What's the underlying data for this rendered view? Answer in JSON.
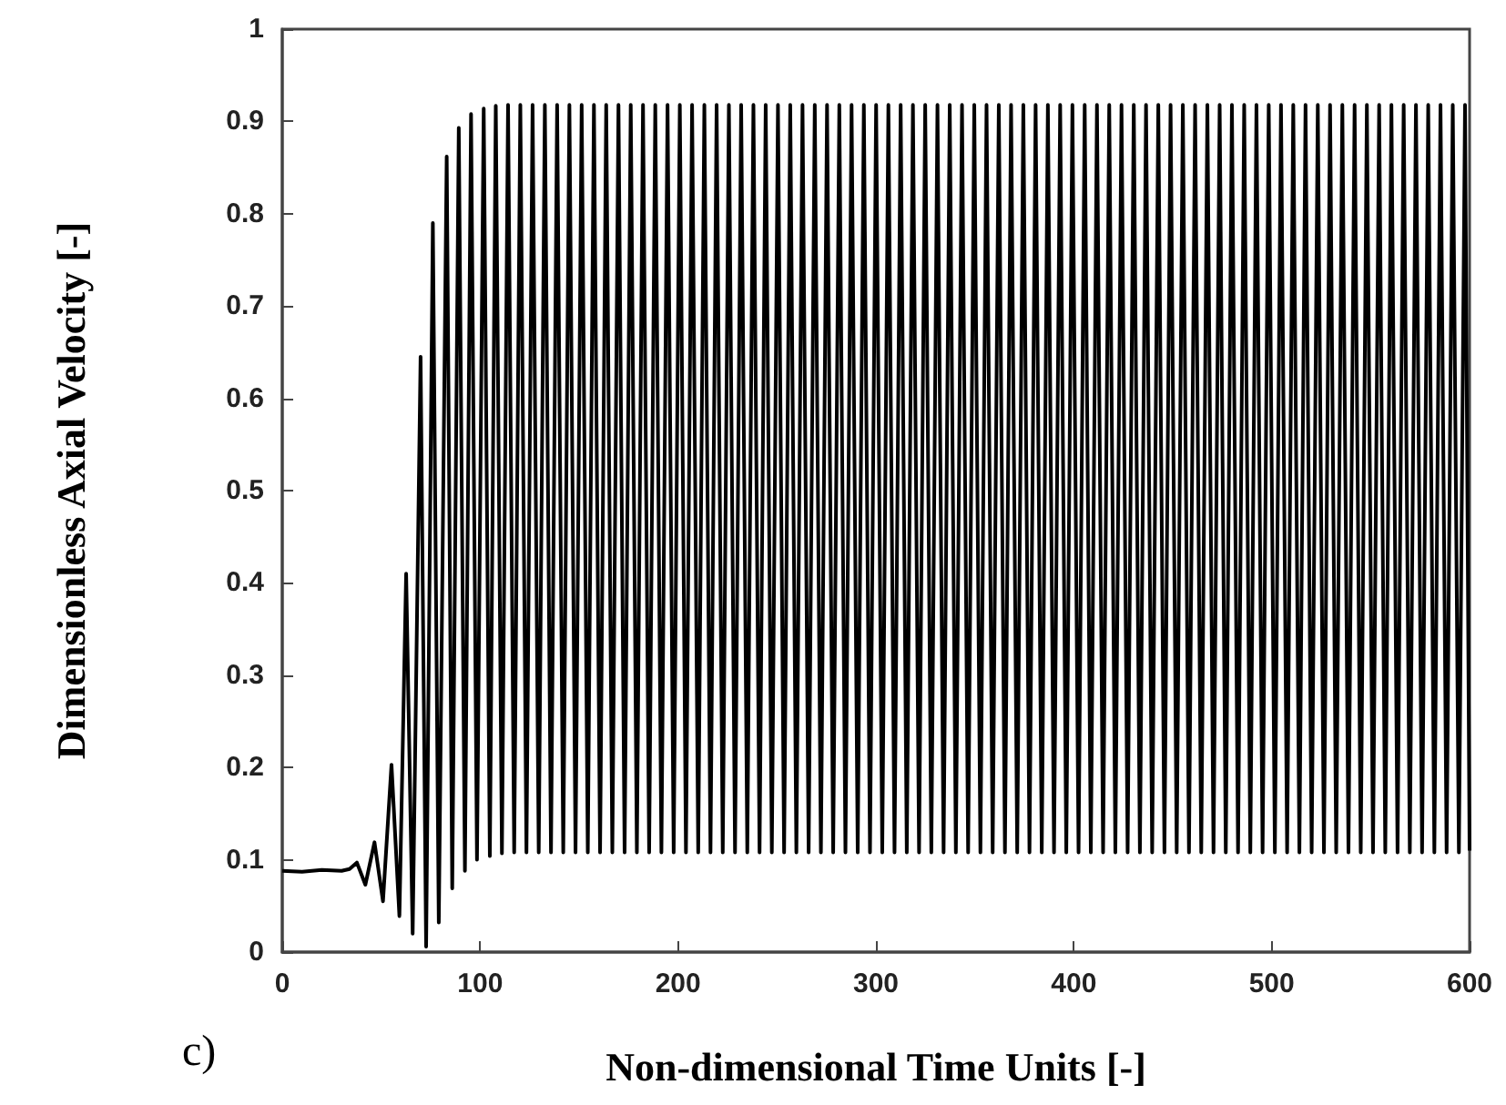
{
  "chart_data": {
    "type": "line",
    "xlabel": "Non-dimensional Time Units [-]",
    "ylabel": "Dimensionless Axial Velocity [-]",
    "annotations": [
      "c)"
    ],
    "xlim": [
      0,
      600
    ],
    "xticks": [
      0,
      100,
      200,
      300,
      400,
      500,
      600
    ],
    "ylim": [
      0,
      1
    ],
    "yticks": [
      0,
      0.1,
      0.2,
      0.3,
      0.4,
      0.5,
      0.6,
      0.7,
      0.8,
      0.9,
      1
    ],
    "grid": false,
    "marker": "none",
    "line_style": "solid",
    "series": [
      {
        "color": "#000000",
        "x": [
          0,
          10,
          20,
          30,
          34,
          37.7,
          42,
          46.6,
          50.9,
          55.2,
          59.2,
          62.6,
          65.9,
          69.9,
          72.7,
          76.1,
          79.1,
          83.1,
          85.9,
          89.2,
          92.3,
          95.4,
          98.4,
          101.8,
          104.9,
          107.9,
          111,
          114.1,
          117.2,
          120.3,
          123.4,
          126.5,
          129.6,
          132.7,
          135.8,
          138.9,
          142,
          145.1,
          148.2,
          151.3,
          154.4,
          157.5,
          160.6,
          163.7,
          166.8,
          169.9,
          173,
          176.1,
          179.2,
          182.3,
          185.4,
          188.5,
          191.6,
          194.7,
          197.8,
          200.9,
          204,
          207.1,
          210.2,
          213.3,
          216.4,
          219.5,
          222.6,
          225.7,
          228.8,
          231.9,
          235,
          238.1,
          241.2,
          244.3,
          247.4,
          250.5,
          253.6,
          256.7,
          259.8,
          262.9,
          266,
          269.1,
          272.2,
          275.3,
          278.4,
          281.5,
          284.6,
          287.7,
          290.8,
          293.9,
          297,
          300.1,
          303.2,
          306.3,
          309.4,
          312.5,
          315.6,
          318.7,
          321.8,
          324.9,
          328,
          331.1,
          334.2,
          337.3,
          340.4,
          343.5,
          346.6,
          349.7,
          352.8,
          355.9,
          359,
          362.1,
          365.2,
          368.3,
          371.4,
          374.5,
          377.6,
          380.7,
          383.8,
          386.9,
          390,
          393.1,
          396.2,
          399.3,
          402.4,
          405.5,
          408.6,
          411.7,
          414.8,
          417.9,
          421,
          424.1,
          427.2,
          430.3,
          433.4,
          436.5,
          439.6,
          442.7,
          445.8,
          448.9,
          452,
          455.1,
          458.2,
          461.3,
          464.4,
          467.5,
          470.6,
          473.7,
          476.8,
          479.9,
          483,
          486.1,
          489.2,
          492.3,
          495.4,
          498.5,
          501.6,
          504.7,
          507.8,
          510.9,
          514,
          517.1,
          520.2,
          523.3,
          526.4,
          529.5,
          532.6,
          535.7,
          538.8,
          541.9,
          545,
          548.1,
          551.2,
          554.3,
          557.4,
          560.5,
          563.6,
          566.7,
          569.8,
          572.9,
          576,
          579.1,
          582.2,
          585.3,
          588.4,
          591.5,
          594.6,
          597.7,
          600
        ],
        "values": [
          0.088,
          0.087,
          0.089,
          0.088,
          0.09,
          0.097,
          0.073,
          0.119,
          0.055,
          0.203,
          0.039,
          0.41,
          0.02,
          0.645,
          0.006,
          0.79,
          0.032,
          0.862,
          0.069,
          0.893,
          0.088,
          0.908,
          0.1,
          0.914,
          0.104,
          0.917,
          0.107,
          0.918,
          0.108,
          0.918,
          0.108,
          0.918,
          0.108,
          0.918,
          0.108,
          0.918,
          0.108,
          0.918,
          0.108,
          0.918,
          0.108,
          0.918,
          0.108,
          0.918,
          0.108,
          0.918,
          0.108,
          0.918,
          0.108,
          0.918,
          0.108,
          0.918,
          0.108,
          0.918,
          0.108,
          0.918,
          0.108,
          0.918,
          0.108,
          0.918,
          0.108,
          0.918,
          0.108,
          0.918,
          0.108,
          0.918,
          0.108,
          0.918,
          0.108,
          0.918,
          0.108,
          0.918,
          0.108,
          0.918,
          0.108,
          0.918,
          0.108,
          0.918,
          0.108,
          0.918,
          0.108,
          0.918,
          0.108,
          0.918,
          0.108,
          0.918,
          0.108,
          0.918,
          0.108,
          0.918,
          0.108,
          0.918,
          0.108,
          0.918,
          0.108,
          0.918,
          0.108,
          0.918,
          0.108,
          0.918,
          0.108,
          0.918,
          0.108,
          0.918,
          0.108,
          0.918,
          0.108,
          0.918,
          0.108,
          0.918,
          0.108,
          0.918,
          0.108,
          0.918,
          0.108,
          0.918,
          0.108,
          0.918,
          0.108,
          0.918,
          0.108,
          0.918,
          0.108,
          0.918,
          0.108,
          0.918,
          0.108,
          0.918,
          0.108,
          0.918,
          0.108,
          0.918,
          0.108,
          0.918,
          0.108,
          0.918,
          0.108,
          0.918,
          0.108,
          0.918,
          0.108,
          0.918,
          0.108,
          0.918,
          0.108,
          0.918,
          0.108,
          0.918,
          0.108,
          0.918,
          0.108,
          0.918,
          0.108,
          0.918,
          0.108,
          0.918,
          0.108,
          0.918,
          0.108,
          0.918,
          0.108,
          0.918,
          0.108,
          0.918,
          0.108,
          0.918,
          0.108,
          0.918,
          0.108,
          0.918,
          0.108,
          0.918,
          0.108,
          0.918,
          0.108,
          0.918,
          0.108,
          0.918,
          0.108,
          0.918,
          0.108,
          0.918,
          0.108,
          0.918,
          0.11
        ]
      }
    ]
  }
}
